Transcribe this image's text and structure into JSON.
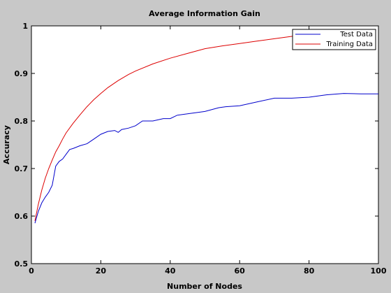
{
  "chart_data": {
    "type": "line",
    "title": "Average Information Gain",
    "xlabel": "Number of Nodes",
    "ylabel": "Accuracy",
    "xlim": [
      0,
      100
    ],
    "ylim": [
      0.5,
      1
    ],
    "x_ticks": [
      "0",
      "20",
      "40",
      "60",
      "80",
      "100"
    ],
    "y_ticks": [
      "0.5",
      "0.6",
      "0.7",
      "0.8",
      "0.9",
      "1"
    ],
    "grid": false,
    "legend_position": "top-right",
    "series": [
      {
        "name": "Test Data",
        "color": "#0000cc",
        "x": [
          1,
          2,
          3,
          4,
          5,
          6,
          7,
          8,
          9,
          10,
          11,
          12,
          14,
          16,
          18,
          20,
          22,
          24,
          25,
          26,
          28,
          30,
          32,
          35,
          38,
          40,
          42,
          45,
          50,
          54,
          56,
          60,
          65,
          70,
          75,
          80,
          85,
          90,
          95,
          100
        ],
        "y": [
          0.585,
          0.61,
          0.628,
          0.64,
          0.65,
          0.665,
          0.705,
          0.715,
          0.72,
          0.73,
          0.74,
          0.742,
          0.748,
          0.752,
          0.762,
          0.772,
          0.778,
          0.78,
          0.776,
          0.782,
          0.785,
          0.79,
          0.8,
          0.8,
          0.805,
          0.805,
          0.812,
          0.815,
          0.82,
          0.828,
          0.83,
          0.832,
          0.84,
          0.848,
          0.848,
          0.85,
          0.855,
          0.858,
          0.857,
          0.857
        ]
      },
      {
        "name": "Training Data",
        "color": "#dd0000",
        "x": [
          1,
          2,
          3,
          4,
          5,
          6,
          7,
          8,
          9,
          10,
          12,
          14,
          16,
          18,
          20,
          22,
          25,
          28,
          30,
          35,
          40,
          45,
          50,
          55,
          60,
          65,
          70,
          75,
          80,
          85,
          90,
          92
        ],
        "y": [
          0.59,
          0.625,
          0.655,
          0.68,
          0.7,
          0.718,
          0.735,
          0.748,
          0.762,
          0.775,
          0.795,
          0.813,
          0.83,
          0.845,
          0.858,
          0.87,
          0.885,
          0.898,
          0.905,
          0.92,
          0.932,
          0.942,
          0.952,
          0.958,
          0.963,
          0.968,
          0.973,
          0.978,
          0.983,
          0.987,
          0.991,
          0.992
        ]
      }
    ]
  }
}
